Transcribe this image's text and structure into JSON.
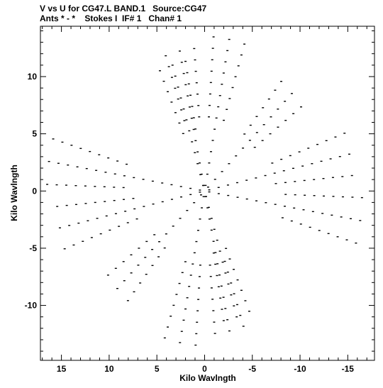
{
  "header": {
    "title": "V vs U for CG47.L BAND.1   Source:CG47",
    "subtitle": "Ants * - *    Stokes I  IF# 1   Chan# 1"
  },
  "chart_data": {
    "type": "scatter",
    "title": "V vs U for CG47.L BAND.1   Source:CG47",
    "subtitle": "Ants * - *    Stokes I  IF# 1   Chan# 1",
    "xlabel": "Kilo Wavlngth",
    "ylabel": "Kilo Wavlngth",
    "xlim": [
      17.2,
      -17.8
    ],
    "ylim": [
      -14.8,
      14.4
    ],
    "x_inverted": true,
    "xticks": [
      15,
      10,
      5,
      0,
      -5,
      -10,
      -15
    ],
    "xtick_labels": [
      "15",
      "10",
      "5",
      "0",
      "-5",
      "-10",
      "-15"
    ],
    "yticks": [
      10,
      5,
      0,
      -5,
      -10
    ],
    "ytick_labels": [
      "10",
      "5",
      "0",
      "-5",
      "-10"
    ],
    "grid": false,
    "legend": "none",
    "arms": [
      {
        "angle_deg": 78,
        "far_km": 12.5
      },
      {
        "angle_deg": 101,
        "far_km": 14.2
      },
      {
        "angle_deg": 9,
        "far_km": 16.8
      },
      {
        "angle_deg": -12,
        "far_km": 16.3
      },
      {
        "angle_deg": 73,
        "far_km": 12.2
      },
      {
        "angle_deg": 137,
        "far_km": 13.4
      }
    ],
    "sample_spacing_km": 1.0,
    "min_radius_km": 0.5,
    "rotation_span_deg": 14,
    "dash_count": 3,
    "points": []
  }
}
